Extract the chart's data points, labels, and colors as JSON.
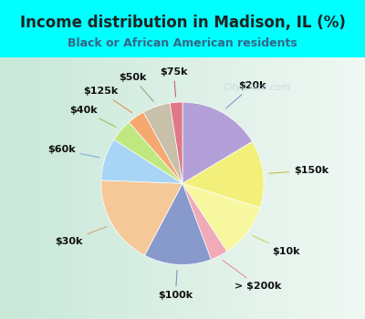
{
  "title": "Income distribution in Madison, IL (%)",
  "subtitle": "Black or African American residents",
  "labels": [
    "$20k",
    "$150k",
    "$10k",
    "> $200k",
    "$100k",
    "$30k",
    "$60k",
    "$40k",
    "$125k",
    "$50k",
    "$75k"
  ],
  "sizes": [
    16.5,
    13.5,
    11.0,
    3.5,
    13.5,
    18.0,
    8.5,
    4.5,
    3.5,
    5.5,
    2.5
  ],
  "slice_colors": [
    "#b3a0d8",
    "#f0ef80",
    "#f0ef80",
    "#f0aab8",
    "#8899cc",
    "#f5c898",
    "#a8d4f5",
    "#c0e880",
    "#f5a870",
    "#c8c0a8",
    "#e07888"
  ],
  "bg_top_color": "#00ffff",
  "bg_chart_left": "#c8e8d8",
  "bg_chart_right": "#e8f8f0",
  "title_color": "#222222",
  "subtitle_color": "#336688",
  "watermark_color": "#c0d8e0",
  "startangle": 90,
  "label_fontsize": 8,
  "title_fontsize": 12,
  "subtitle_fontsize": 9
}
